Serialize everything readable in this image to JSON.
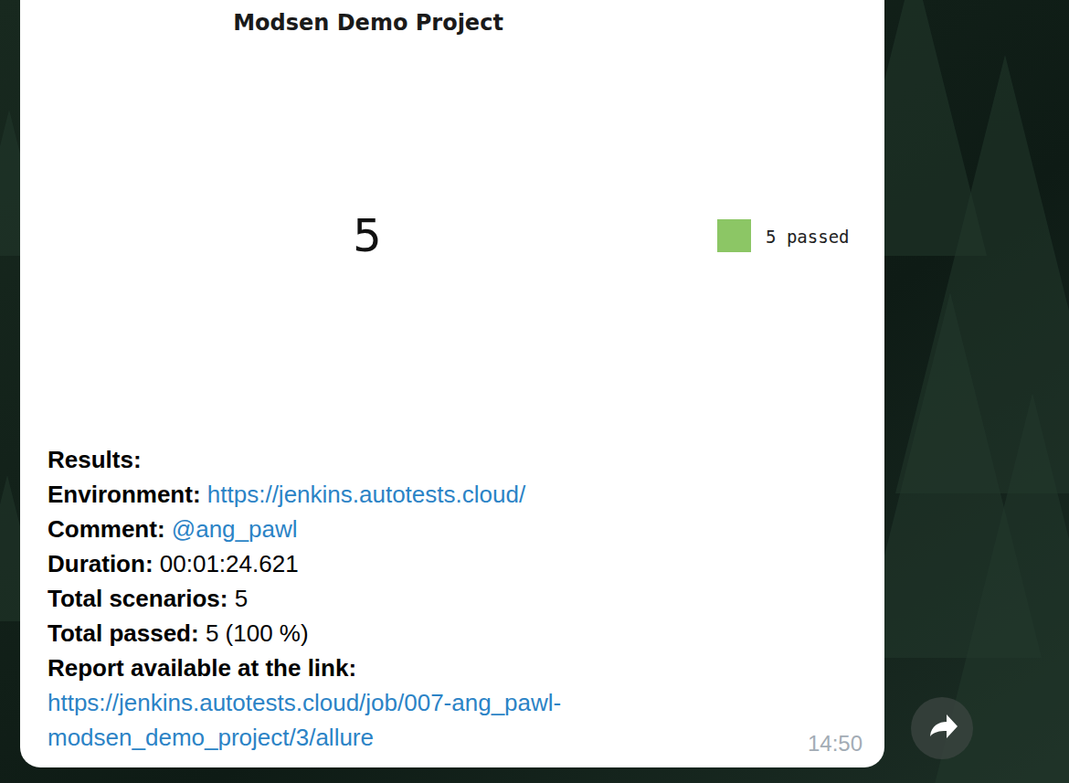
{
  "chart_data": {
    "type": "pie",
    "title": "Modsen Demo Project",
    "categories": [
      "5 passed"
    ],
    "values": [
      5
    ],
    "colors": [
      "#8cc665"
    ],
    "total": 5,
    "legend": "right",
    "data_labels": false
  },
  "message": {
    "heading": "Results:",
    "fields": [
      {
        "label": "Environment:",
        "value": "https://jenkins.autotests.cloud/",
        "link": true
      },
      {
        "label": "Comment:",
        "value": "@ang_pawl",
        "link": true
      },
      {
        "label": "Duration:",
        "value": "00:01:24.621",
        "link": false
      },
      {
        "label": "Total scenarios:",
        "value": "5",
        "link": false
      },
      {
        "label": "Total passed:",
        "value": "5 (100 %)",
        "link": false
      }
    ],
    "report_label": "Report available at the link:",
    "report_link": "https://jenkins.autotests.cloud/job/007-ang_pawl-modsen_demo_project/3/allure",
    "time": "14:50"
  }
}
